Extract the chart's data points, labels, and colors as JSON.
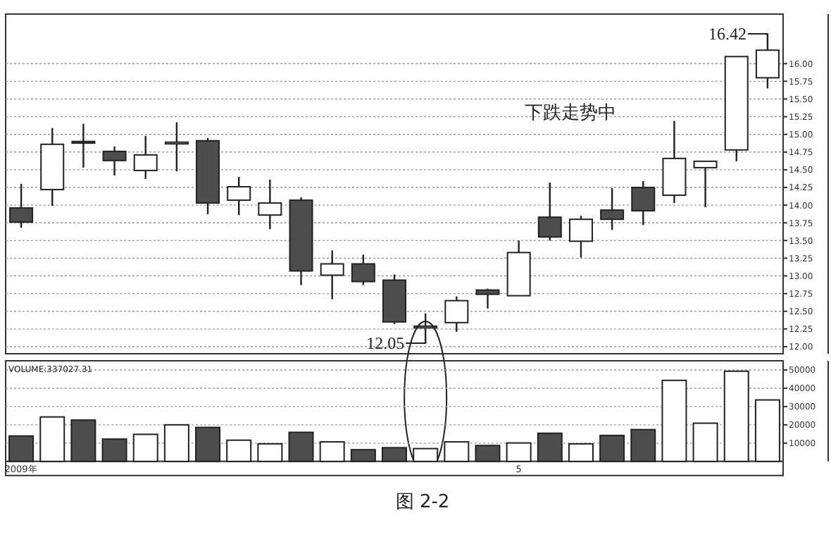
{
  "chart_data": [
    {
      "type": "candlestick",
      "ohlc": [
        [
          13.96,
          14.3,
          13.68,
          13.76
        ],
        [
          14.22,
          15.09,
          13.99,
          14.86
        ],
        [
          14.9,
          15.15,
          14.53,
          14.88
        ],
        [
          14.76,
          14.83,
          14.42,
          14.63
        ],
        [
          14.49,
          14.98,
          14.37,
          14.71
        ],
        [
          14.87,
          15.17,
          14.48,
          14.89
        ],
        [
          14.91,
          14.95,
          13.87,
          14.03
        ],
        [
          14.07,
          14.4,
          13.86,
          14.26
        ],
        [
          13.86,
          14.36,
          13.66,
          14.03
        ],
        [
          14.07,
          14.11,
          12.87,
          13.07
        ],
        [
          13.01,
          13.36,
          12.67,
          13.17
        ],
        [
          13.17,
          13.3,
          12.87,
          12.92
        ],
        [
          12.94,
          13.02,
          12.32,
          12.35
        ],
        [
          12.27,
          12.47,
          12.05,
          12.29
        ],
        [
          12.34,
          12.71,
          12.21,
          12.65
        ],
        [
          12.8,
          12.82,
          12.54,
          12.74
        ],
        [
          12.72,
          13.5,
          12.72,
          13.33
        ],
        [
          13.83,
          14.32,
          13.5,
          13.55
        ],
        [
          13.49,
          13.85,
          13.26,
          13.8
        ],
        [
          13.93,
          14.24,
          13.65,
          13.8
        ],
        [
          14.25,
          14.34,
          13.72,
          13.92
        ],
        [
          14.14,
          15.19,
          14.03,
          14.66
        ],
        [
          14.53,
          14.62,
          13.97,
          14.62
        ],
        [
          14.78,
          16.1,
          14.62,
          16.1
        ],
        [
          15.8,
          16.42,
          15.65,
          16.19
        ]
      ],
      "colors": [
        "#4d4d4d",
        "#ffffff",
        "#4d4d4d",
        "#4d4d4d",
        "#ffffff",
        "#ffffff",
        "#4d4d4d",
        "#ffffff",
        "#ffffff",
        "#4d4d4d",
        "#ffffff",
        "#4d4d4d",
        "#4d4d4d",
        "#ffffff",
        "#ffffff",
        "#4d4d4d",
        "#ffffff",
        "#4d4d4d",
        "#ffffff",
        "#4d4d4d",
        "#4d4d4d",
        "#ffffff",
        "#ffffff",
        "#ffffff",
        "#ffffff"
      ],
      "ylim": [
        11.9,
        16.7
      ],
      "yticks": [
        {
          "value": 12,
          "label": "12.00"
        },
        {
          "value": 12.25,
          "label": "12.25"
        },
        {
          "value": 12.5,
          "label": "12.50"
        },
        {
          "value": 12.75,
          "label": "12.75"
        },
        {
          "value": 13,
          "label": "13.00"
        },
        {
          "value": 13.25,
          "label": "13.25"
        },
        {
          "value": 13.5,
          "label": "13.50"
        },
        {
          "value": 13.75,
          "label": "13.75"
        },
        {
          "value": 14,
          "label": "14.00"
        },
        {
          "value": 14.25,
          "label": "14.25"
        },
        {
          "value": 14.5,
          "label": "14.50"
        },
        {
          "value": 14.75,
          "label": "14.75"
        },
        {
          "value": 15,
          "label": "15.00"
        },
        {
          "value": 15.25,
          "label": "15.25"
        },
        {
          "value": 15.5,
          "label": "15.50"
        },
        {
          "value": 15.75,
          "label": "15.75"
        },
        {
          "value": 16,
          "label": "16.00"
        }
      ],
      "grid": "y",
      "tick_labels": "y",
      "annotations": [
        "下跌走势中",
        "16.42",
        "12.05"
      ]
    },
    {
      "type": "bar",
      "categories": [
        "2009年",
        null,
        null,
        null,
        null,
        null,
        null,
        null,
        null,
        null,
        null,
        null,
        null,
        null,
        null,
        null,
        "5",
        null,
        null,
        null,
        null,
        null,
        null,
        null,
        null
      ],
      "values": [
        13900,
        24300,
        22600,
        12200,
        14800,
        20000,
        18600,
        11600,
        9600,
        15900,
        10700,
        6400,
        7500,
        7000,
        10700,
        8700,
        10100,
        15400,
        9600,
        14200,
        17400,
        44300,
        20900,
        49300,
        33600
      ],
      "colors": [
        "#4d4d4d",
        "#ffffff",
        "#4d4d4d",
        "#4d4d4d",
        "#ffffff",
        "#ffffff",
        "#4d4d4d",
        "#ffffff",
        "#ffffff",
        "#4d4d4d",
        "#ffffff",
        "#4d4d4d",
        "#4d4d4d",
        "#ffffff",
        "#ffffff",
        "#4d4d4d",
        "#ffffff",
        "#4d4d4d",
        "#ffffff",
        "#4d4d4d",
        "#4d4d4d",
        "#ffffff",
        "#ffffff",
        "#ffffff",
        "#ffffff"
      ],
      "ylim": [
        0,
        55000
      ],
      "yticks": [
        10000,
        20000,
        30000,
        40000,
        50000
      ],
      "grid": "y",
      "annotations": [
        "VOLUME:337027.31",
        "图 2-2"
      ]
    }
  ]
}
